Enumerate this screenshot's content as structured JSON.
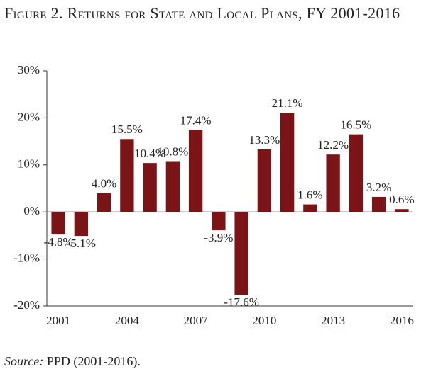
{
  "chart_data": {
    "type": "bar",
    "title": "Figure 2. Returns for State and Local Plans, FY 2001-2016",
    "categories": [
      "2001",
      null,
      null,
      "2004",
      null,
      null,
      "2007",
      null,
      null,
      "2010",
      null,
      null,
      "2013",
      null,
      null,
      "2016"
    ],
    "values": [
      -4.8,
      -5.1,
      4.0,
      15.5,
      10.4,
      10.8,
      17.4,
      -3.9,
      -17.6,
      13.3,
      21.1,
      1.6,
      12.2,
      16.5,
      3.2,
      0.6
    ],
    "value_labels": [
      "-4.8%",
      "-5.1%",
      "4.0%",
      "15.5%",
      "10.4%",
      "10.8%",
      "17.4%",
      "-3.9%",
      "-17.6%",
      "13.3%",
      "21.1%",
      "1.6%",
      "12.2%",
      "16.5%",
      "3.2%",
      "0.6%"
    ],
    "color": "#7b1416",
    "ylim": [
      -20,
      30
    ],
    "yticks": [
      {
        "value": -20,
        "label": "-20%"
      },
      {
        "value": -10,
        "label": "-10%"
      },
      {
        "value": 0,
        "label": "0%"
      },
      {
        "value": 10,
        "label": "10%"
      },
      {
        "value": 20,
        "label": "20%"
      },
      {
        "value": 30,
        "label": "30%"
      }
    ],
    "grid": false,
    "source": {
      "label": "Source:",
      "text": "PPD (2001-2016)."
    }
  }
}
